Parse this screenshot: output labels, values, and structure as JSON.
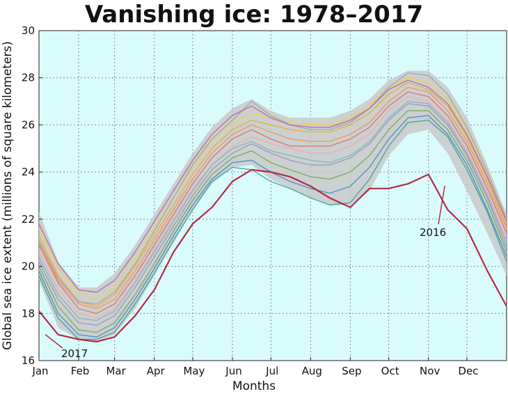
{
  "chart_data": {
    "type": "line",
    "title": "Vanishing ice: 1978–2017",
    "xlabel": "Months",
    "ylabel": "Global sea ice extent (millions of square kilometers)",
    "ylim": [
      16,
      30
    ],
    "yticks": [
      16,
      18,
      20,
      22,
      24,
      26,
      28,
      30
    ],
    "xlim": [
      0,
      365
    ],
    "xticks": [
      {
        "label": "Jan",
        "x": 0
      },
      {
        "label": "Feb",
        "x": 31
      },
      {
        "label": "Mar",
        "x": 59
      },
      {
        "label": "Apr",
        "x": 90
      },
      {
        "label": "May",
        "x": 120
      },
      {
        "label": "Jun",
        "x": 151
      },
      {
        "label": "Jul",
        "x": 181
      },
      {
        "label": "Aug",
        "x": 212
      },
      {
        "label": "Sep",
        "x": 243
      },
      {
        "label": "Oct",
        "x": 273
      },
      {
        "label": "Nov",
        "x": 304
      },
      {
        "label": "Dec",
        "x": 334
      }
    ],
    "grid": true,
    "background_color": "#d9fbfb",
    "band": {
      "x": [
        0,
        15,
        31,
        45,
        59,
        75,
        90,
        105,
        120,
        135,
        151,
        166,
        181,
        196,
        212,
        227,
        243,
        258,
        273,
        288,
        304,
        319,
        334,
        350,
        365
      ],
      "upper": [
        22.3,
        20.2,
        19.1,
        19.1,
        19.7,
        20.9,
        22.2,
        23.5,
        24.8,
        25.9,
        26.7,
        27.1,
        26.6,
        26.3,
        26.3,
        26.3,
        26.6,
        27.1,
        27.9,
        28.3,
        28.3,
        27.6,
        26.3,
        24.3,
        22.2
      ],
      "lower": [
        19.4,
        17.4,
        16.9,
        16.8,
        17.1,
        18.2,
        19.6,
        21.0,
        22.4,
        23.5,
        24.2,
        24.3,
        23.7,
        23.3,
        22.9,
        22.6,
        22.6,
        23.2,
        24.7,
        25.6,
        25.8,
        24.8,
        23.2,
        21.4,
        19.6
      ],
      "color": "#c8c8c8"
    },
    "series": [
      {
        "color": "#e06666",
        "values": [
          20.9,
          19.3,
          18.2,
          18.0,
          18.4,
          19.6,
          20.9,
          22.2,
          23.5,
          24.6,
          25.4,
          25.8,
          25.4,
          25.1,
          25.1,
          25.1,
          25.4,
          25.9,
          26.8,
          27.4,
          27.2,
          26.4,
          25.1,
          23.3,
          21.4
        ]
      },
      {
        "color": "#f5a623",
        "values": [
          21.3,
          19.6,
          18.5,
          18.3,
          18.8,
          20.0,
          21.3,
          22.6,
          23.9,
          25.0,
          25.8,
          26.2,
          26.0,
          25.8,
          25.7,
          25.7,
          26.0,
          26.5,
          27.3,
          27.8,
          27.5,
          26.8,
          25.5,
          23.7,
          21.7
        ]
      },
      {
        "color": "#ffcc33",
        "values": [
          21.6,
          19.9,
          18.9,
          18.6,
          19.1,
          20.3,
          21.6,
          22.9,
          24.2,
          25.3,
          26.1,
          26.5,
          26.3,
          26.1,
          26.0,
          26.0,
          26.3,
          26.8,
          27.6,
          28.0,
          27.8,
          27.1,
          25.8,
          24.0,
          22.0
        ]
      },
      {
        "color": "#f9a3b8",
        "values": [
          20.6,
          19.0,
          18.0,
          17.8,
          18.2,
          19.4,
          20.7,
          22.0,
          23.3,
          24.3,
          25.1,
          25.5,
          25.2,
          25.0,
          24.8,
          24.8,
          25.1,
          25.6,
          26.6,
          27.2,
          27.0,
          26.2,
          24.9,
          23.1,
          21.1
        ]
      },
      {
        "color": "#9b8ec4",
        "values": [
          20.2,
          18.6,
          17.6,
          17.5,
          17.9,
          19.1,
          20.4,
          21.7,
          23.0,
          24.1,
          24.8,
          25.2,
          24.8,
          24.5,
          24.3,
          24.3,
          24.6,
          25.2,
          26.2,
          26.9,
          26.8,
          26.0,
          24.7,
          22.9,
          20.8
        ]
      },
      {
        "color": "#6aa84f",
        "values": [
          20.0,
          18.3,
          17.3,
          17.2,
          17.6,
          18.8,
          20.1,
          21.5,
          22.8,
          23.9,
          24.6,
          24.9,
          24.4,
          24.1,
          23.8,
          23.7,
          24.0,
          24.7,
          25.8,
          26.6,
          26.6,
          25.8,
          24.5,
          22.7,
          20.6
        ]
      },
      {
        "color": "#3d85c6",
        "values": [
          19.8,
          18.0,
          17.1,
          17.0,
          17.4,
          18.6,
          19.9,
          21.3,
          22.6,
          23.7,
          24.4,
          24.5,
          24.0,
          23.6,
          23.3,
          23.1,
          23.4,
          24.2,
          25.4,
          26.3,
          26.4,
          25.6,
          24.3,
          22.4,
          20.4
        ]
      },
      {
        "color": "#2aa198",
        "values": [
          19.6,
          17.8,
          16.9,
          16.9,
          17.2,
          18.4,
          19.7,
          21.1,
          22.4,
          23.6,
          24.2,
          24.1,
          23.6,
          23.3,
          22.9,
          22.6,
          22.7,
          23.7,
          25.1,
          26.1,
          26.2,
          25.5,
          24.1,
          22.3,
          20.2
        ]
      },
      {
        "color": "#a0a0a0",
        "values": [
          21.1,
          19.5,
          18.5,
          18.4,
          18.9,
          20.1,
          21.5,
          22.9,
          24.3,
          25.4,
          26.2,
          27.0,
          26.4,
          26.0,
          25.8,
          25.8,
          26.1,
          26.7,
          27.6,
          28.2,
          28.1,
          27.3,
          25.9,
          24.0,
          22.0
        ]
      },
      {
        "color": "#b45f9a",
        "values": [
          21.8,
          20.1,
          19.0,
          18.9,
          19.4,
          20.6,
          21.9,
          23.2,
          24.5,
          25.6,
          26.4,
          26.8,
          26.3,
          26.0,
          25.9,
          25.9,
          26.2,
          26.7,
          27.5,
          27.9,
          27.6,
          26.9,
          25.6,
          23.8,
          21.9
        ]
      },
      {
        "color": "#ff8c42",
        "values": [
          21.0,
          19.4,
          18.4,
          18.2,
          18.6,
          19.8,
          21.1,
          22.4,
          23.7,
          24.8,
          25.6,
          26.0,
          25.7,
          25.4,
          25.3,
          25.3,
          25.6,
          26.1,
          27.0,
          27.6,
          27.4,
          26.6,
          25.3,
          23.5,
          21.6
        ]
      },
      {
        "color": "#76b7b2",
        "values": [
          20.4,
          18.8,
          17.8,
          17.7,
          18.1,
          19.3,
          20.6,
          21.9,
          23.2,
          24.3,
          25.0,
          25.3,
          24.9,
          24.7,
          24.5,
          24.4,
          24.7,
          25.3,
          26.3,
          27.0,
          26.9,
          26.1,
          24.8,
          23.0,
          21.0
        ]
      },
      {
        "color": "#b22a4a",
        "values": [
          18.1,
          17.1,
          16.9,
          16.8,
          17.0,
          17.9,
          19.0,
          20.6,
          21.8,
          22.5,
          23.6,
          24.1,
          24.0,
          23.8,
          23.4,
          22.9,
          22.5,
          23.3,
          23.3,
          23.5,
          23.9,
          22.4,
          21.6,
          19.8,
          18.3
        ]
      }
    ],
    "annotations": [
      {
        "text": "2017",
        "x": 5,
        "y": 17.1
      },
      {
        "text": "2016",
        "x": 314,
        "y": 23.3
      }
    ]
  }
}
